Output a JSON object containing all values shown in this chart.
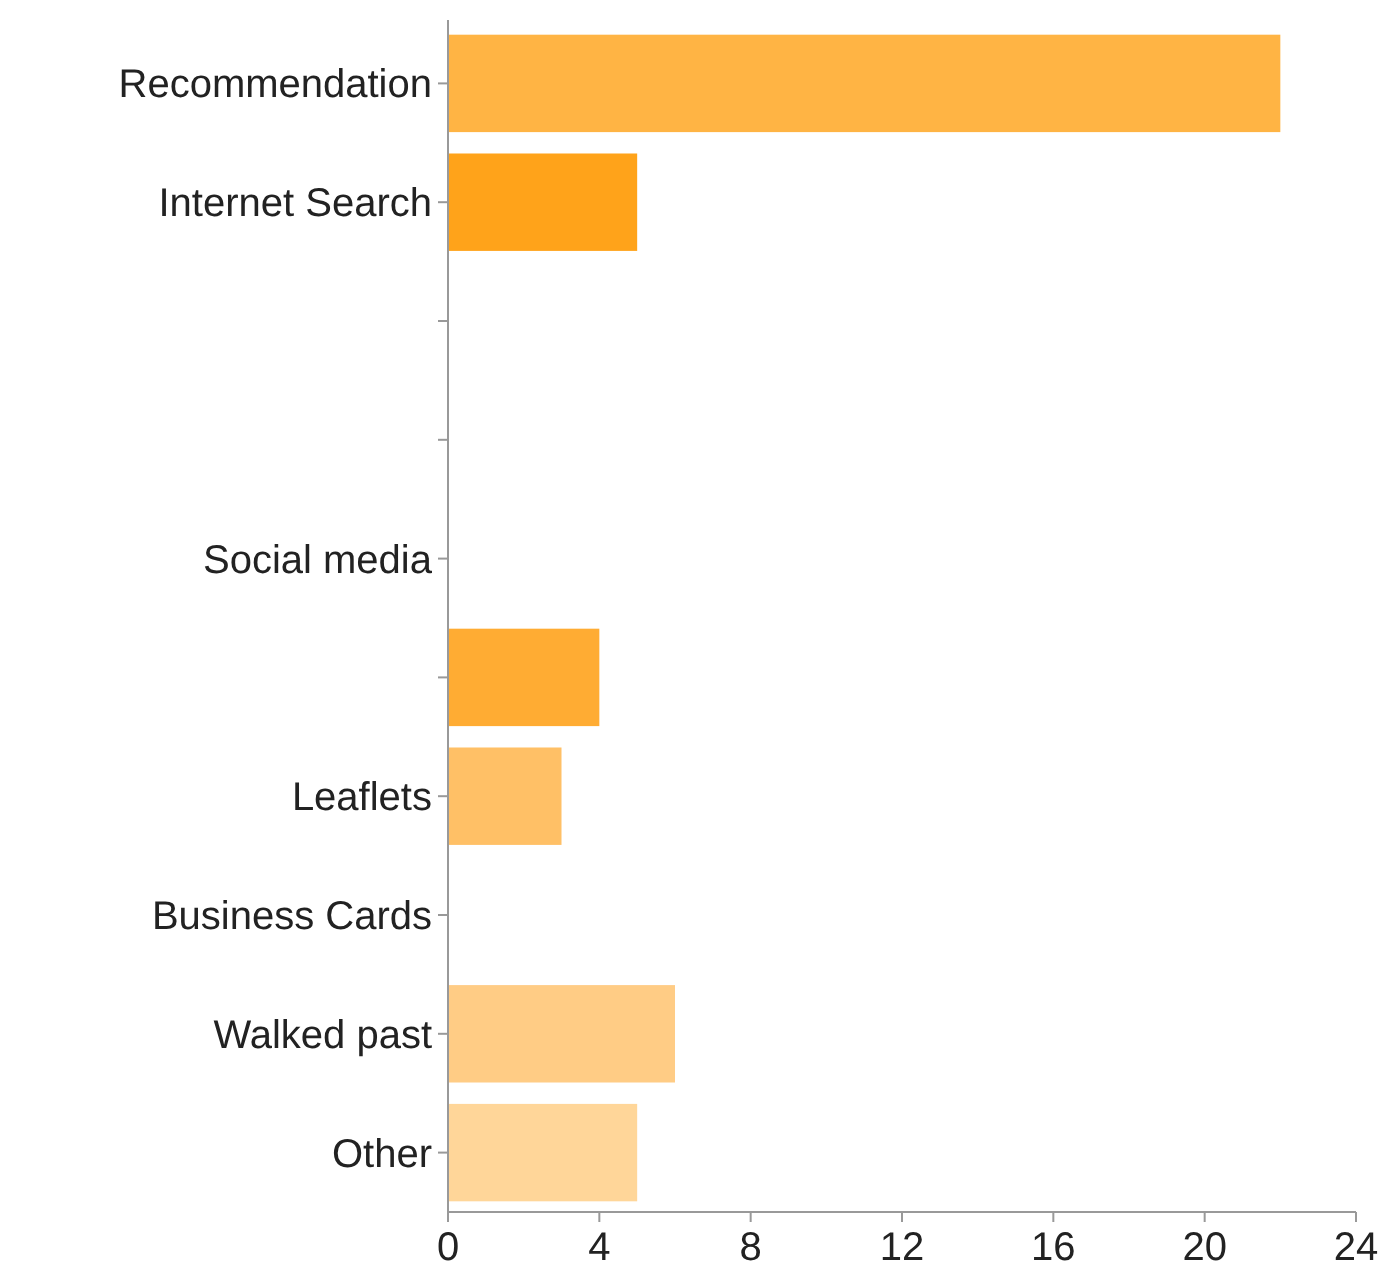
{
  "chart_data": {
    "type": "bar",
    "orientation": "horizontal",
    "categories": [
      "Recommendation",
      "Internet Search",
      null,
      null,
      "Social media",
      null,
      "Leaflets",
      "Business Cards",
      "Walked past",
      "Other"
    ],
    "values": [
      22,
      5,
      0,
      0,
      0,
      4,
      3,
      0,
      6,
      5
    ],
    "colors": [
      "#ffb444",
      "#ffa31a",
      "#ffb444",
      "#ffb444",
      "#ffb444",
      "#ffac33",
      "#ffc066",
      "#ffc066",
      "#ffcc85",
      "#ffd699"
    ],
    "xlim": [
      0,
      24
    ],
    "xticks": [
      0,
      4,
      8,
      12,
      16,
      20,
      24
    ],
    "grid": false
  }
}
